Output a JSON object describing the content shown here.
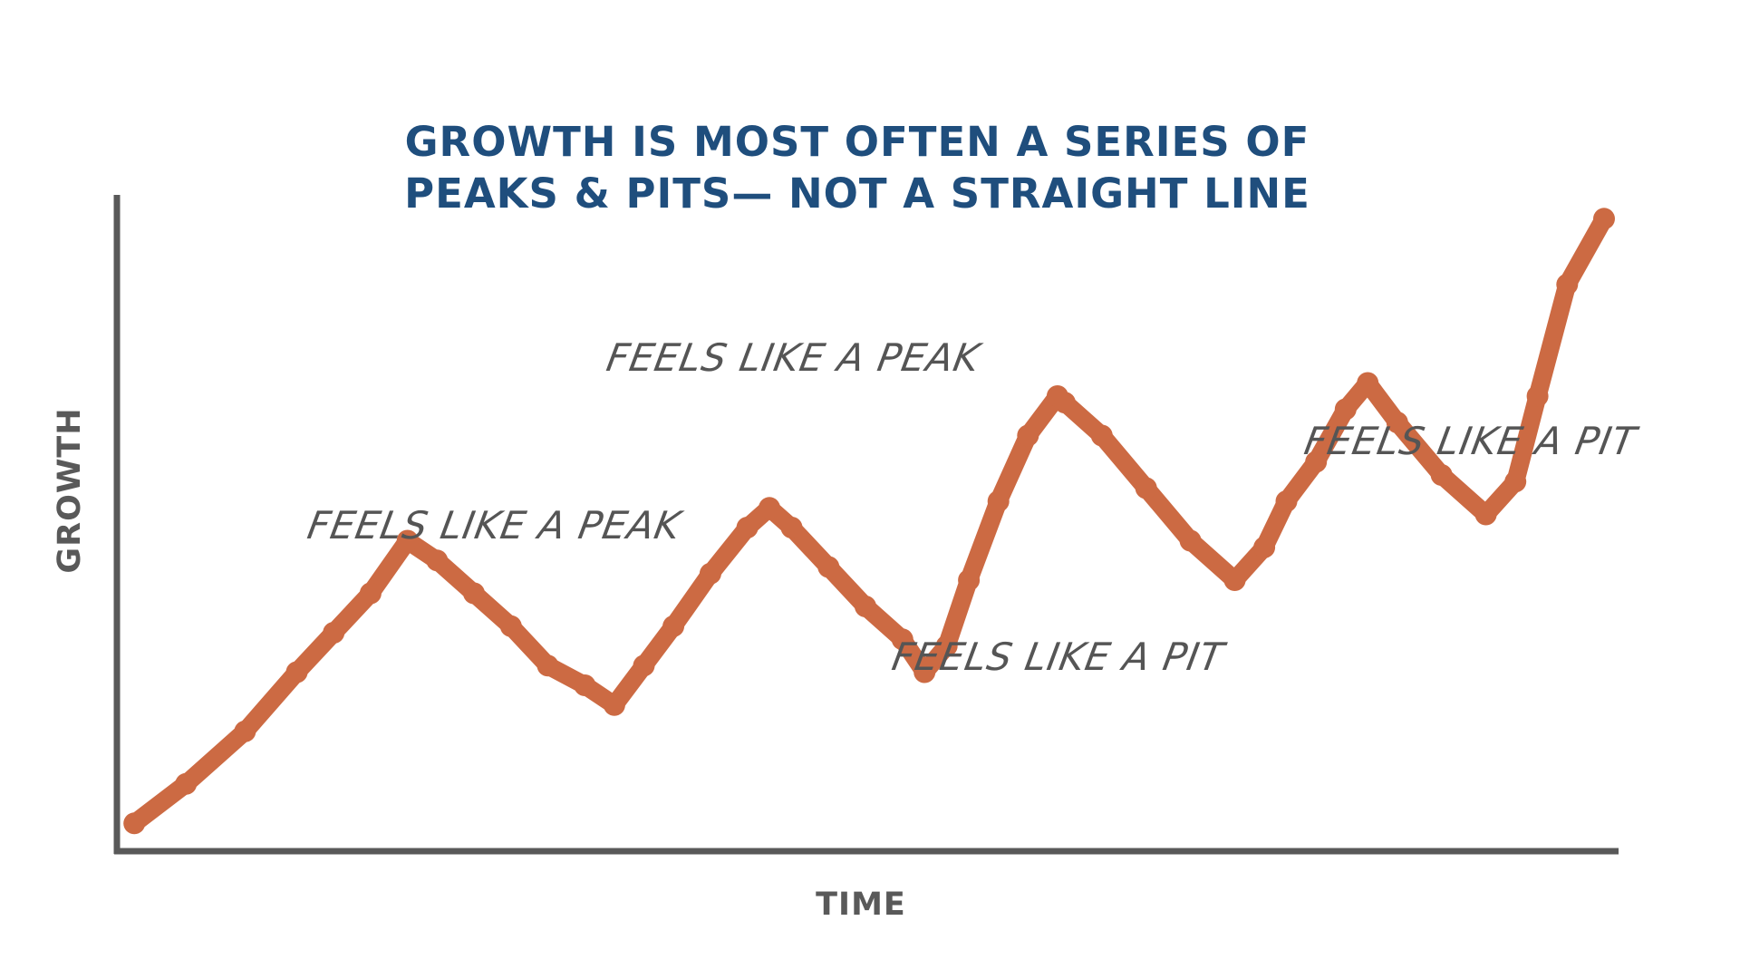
{
  "chart_data": {
    "type": "line",
    "title": [
      "GROWTH IS MOST OFTEN A SERIES OF",
      "PEAKS & PITS— NOT A STRAIGHT LINE"
    ],
    "xlabel": "TIME",
    "ylabel": "GROWTH",
    "xlim": [
      0,
      100
    ],
    "ylim": [
      0,
      100
    ],
    "grid": false,
    "series": [
      {
        "name": "growth",
        "color": "#cc6a43",
        "points": [
          [
            0.5,
            3
          ],
          [
            4,
            9
          ],
          [
            8,
            17
          ],
          [
            11.5,
            26
          ],
          [
            14,
            32
          ],
          [
            16.5,
            38
          ],
          [
            19,
            46
          ],
          [
            21,
            43
          ],
          [
            23.5,
            38
          ],
          [
            26,
            33
          ],
          [
            28.5,
            27
          ],
          [
            31,
            24
          ],
          [
            33,
            21
          ],
          [
            35,
            27
          ],
          [
            37,
            33
          ],
          [
            39.5,
            41
          ],
          [
            42,
            48
          ],
          [
            43.5,
            51
          ],
          [
            45,
            48
          ],
          [
            47.5,
            42
          ],
          [
            50,
            36
          ],
          [
            52.5,
            31
          ],
          [
            54,
            26
          ],
          [
            55.5,
            30
          ],
          [
            57,
            40
          ],
          [
            59,
            52
          ],
          [
            61,
            62
          ],
          [
            63,
            68
          ],
          [
            63.5,
            67
          ],
          [
            66,
            62
          ],
          [
            69,
            54
          ],
          [
            72,
            46
          ],
          [
            75,
            40
          ],
          [
            77,
            45
          ],
          [
            78.5,
            52
          ],
          [
            80.5,
            58
          ],
          [
            82.5,
            66
          ],
          [
            84,
            70
          ],
          [
            86,
            64
          ],
          [
            89,
            56
          ],
          [
            92,
            50
          ],
          [
            94,
            55
          ],
          [
            95.5,
            68
          ],
          [
            97.5,
            85
          ],
          [
            100,
            95
          ]
        ]
      }
    ],
    "annotations": [
      "FEELS LIKE A PEAK",
      "FEELS LIKE A PEAK",
      "FEELS LIKE A PIT",
      "FEELS LIKE A PIT"
    ]
  },
  "colors": {
    "title": "#1f4e7d",
    "axis": "#595959",
    "line": "#cc6a43",
    "annotation": "#555555"
  }
}
